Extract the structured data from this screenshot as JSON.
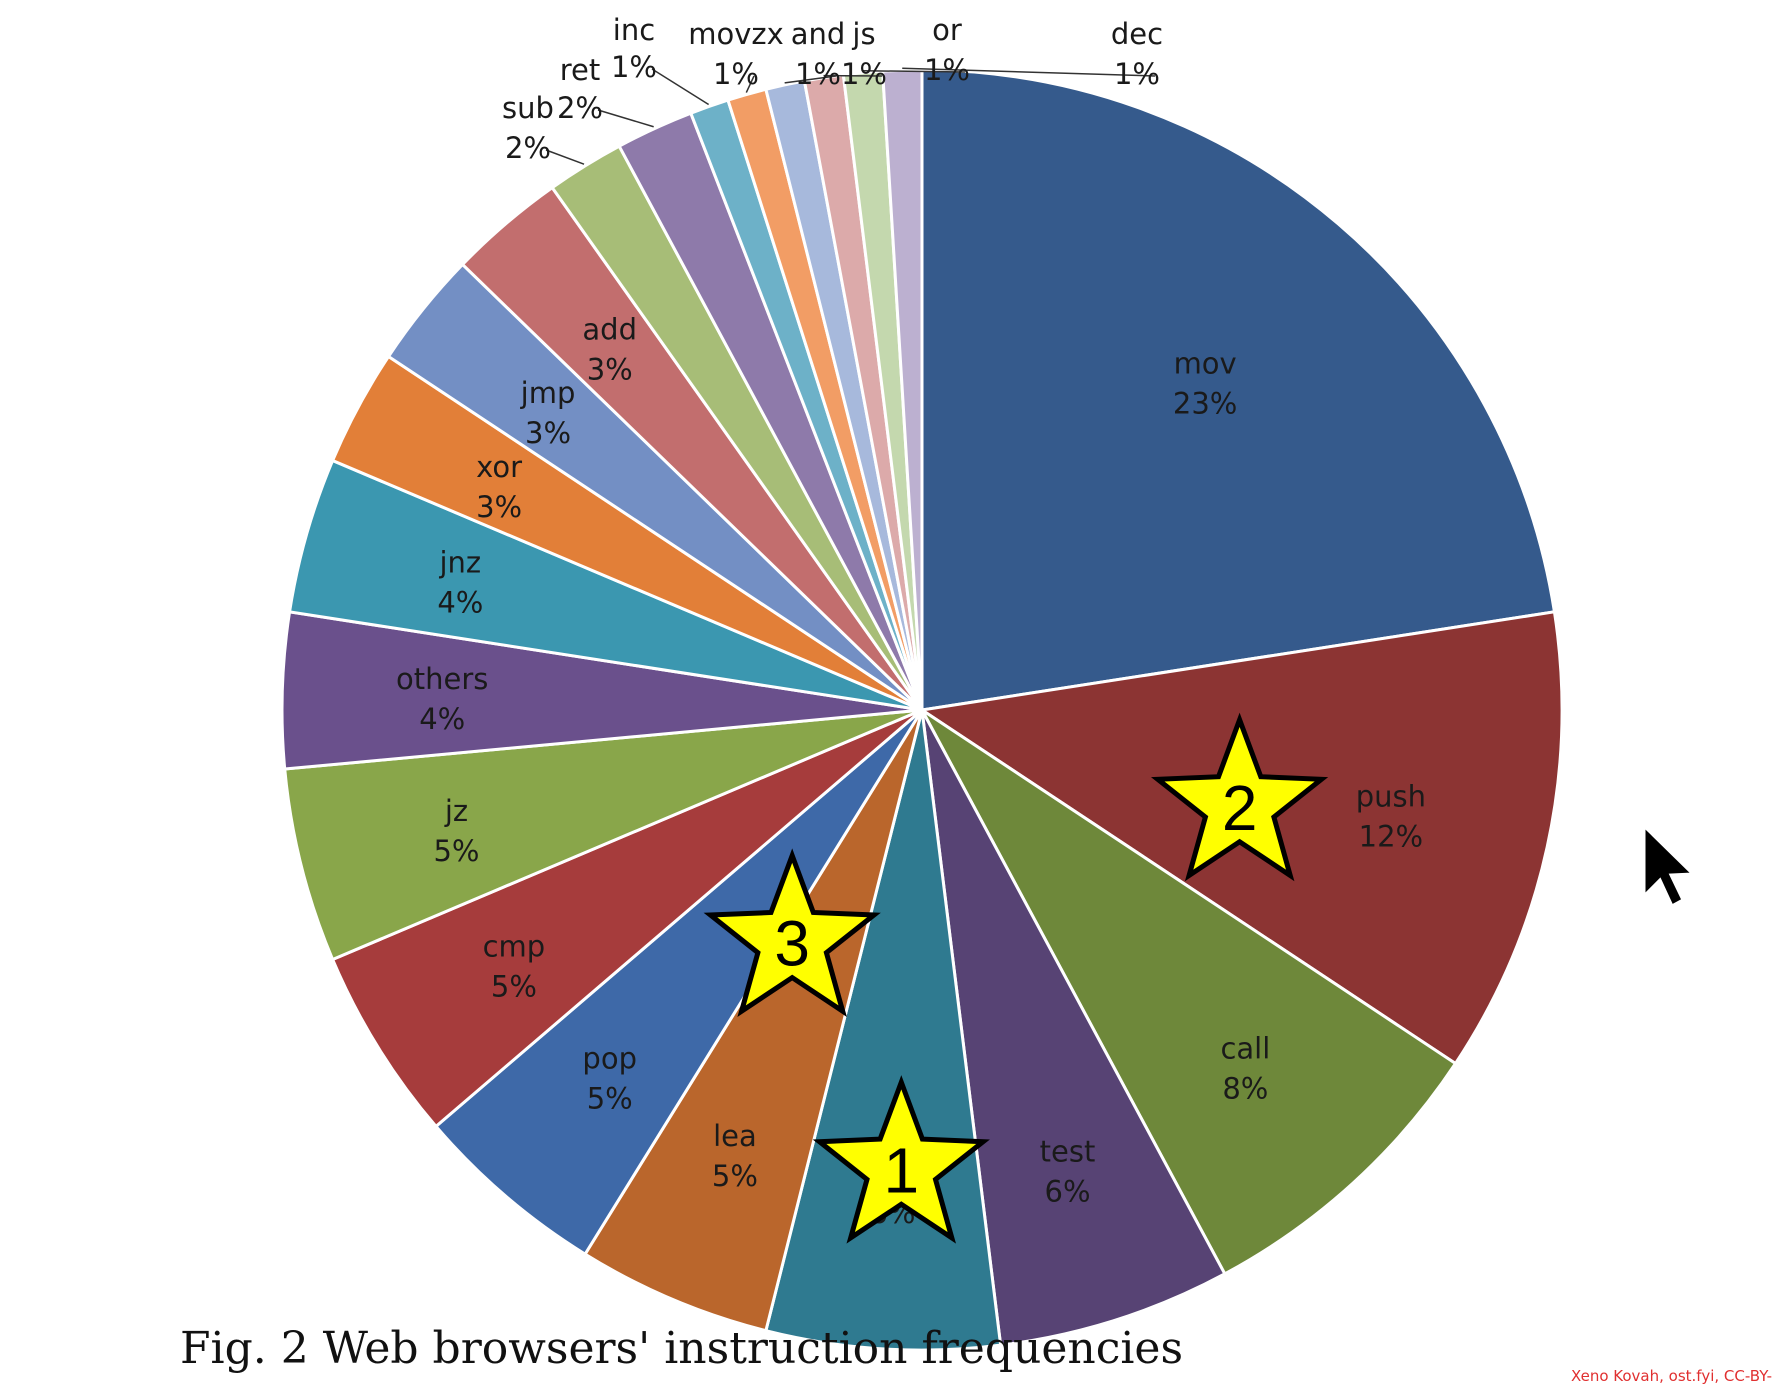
{
  "chart_data": {
    "type": "pie",
    "title": "Fig. 2 Web browsers' instruction frequencies",
    "slices": [
      {
        "label": "mov",
        "value": 23,
        "pct": "23%",
        "color": "#355a8c"
      },
      {
        "label": "push",
        "value": 12,
        "pct": "12%",
        "color": "#8c3433"
      },
      {
        "label": "call",
        "value": 8,
        "pct": "8%",
        "color": "#6e883a"
      },
      {
        "label": "test",
        "value": 6,
        "pct": "6%",
        "color": "#574374"
      },
      {
        "label": "nop",
        "value": 6,
        "pct": "6%",
        "color": "#2f7a90"
      },
      {
        "label": "lea",
        "value": 5,
        "pct": "5%",
        "color": "#ba662c"
      },
      {
        "label": "pop",
        "value": 5,
        "pct": "5%",
        "color": "#3e69a8"
      },
      {
        "label": "cmp",
        "value": 5,
        "pct": "5%",
        "color": "#a63c3c"
      },
      {
        "label": "jz",
        "value": 5,
        "pct": "5%",
        "color": "#89a64a"
      },
      {
        "label": "others",
        "value": 4,
        "pct": "4%",
        "color": "#6a508c"
      },
      {
        "label": "jnz",
        "value": 4,
        "pct": "4%",
        "color": "#3b97b0"
      },
      {
        "label": "xor",
        "value": 3,
        "pct": "3%",
        "color": "#e27f38"
      },
      {
        "label": "jmp",
        "value": 3,
        "pct": "3%",
        "color": "#738fc4"
      },
      {
        "label": "add",
        "value": 3,
        "pct": "3%",
        "color": "#c26e6e"
      },
      {
        "label": "sub",
        "value": 2,
        "pct": "2%",
        "color": "#a7bd77"
      },
      {
        "label": "ret",
        "value": 2,
        "pct": "2%",
        "color": "#8e7aaa"
      },
      {
        "label": "inc",
        "value": 1,
        "pct": "1%",
        "color": "#6db1c8"
      },
      {
        "label": "movzx",
        "value": 1,
        "pct": "1%",
        "color": "#f29d65"
      },
      {
        "label": "and",
        "value": 1,
        "pct": "1%",
        "color": "#a7b9dc"
      },
      {
        "label": "js",
        "value": 1,
        "pct": "1%",
        "color": "#dcaaaa"
      },
      {
        "label": "or",
        "value": 1,
        "pct": "1%",
        "color": "#c4d8ae"
      },
      {
        "label": "dec",
        "value": 1,
        "pct": "1%",
        "color": "#bcb0d0"
      }
    ],
    "annotations": [
      {
        "text": "1",
        "near": "nop"
      },
      {
        "text": "2",
        "near": "push"
      },
      {
        "text": "3",
        "near": "pop"
      }
    ]
  },
  "credit": "Xeno Kovah, ost.fyi, CC-BY-"
}
